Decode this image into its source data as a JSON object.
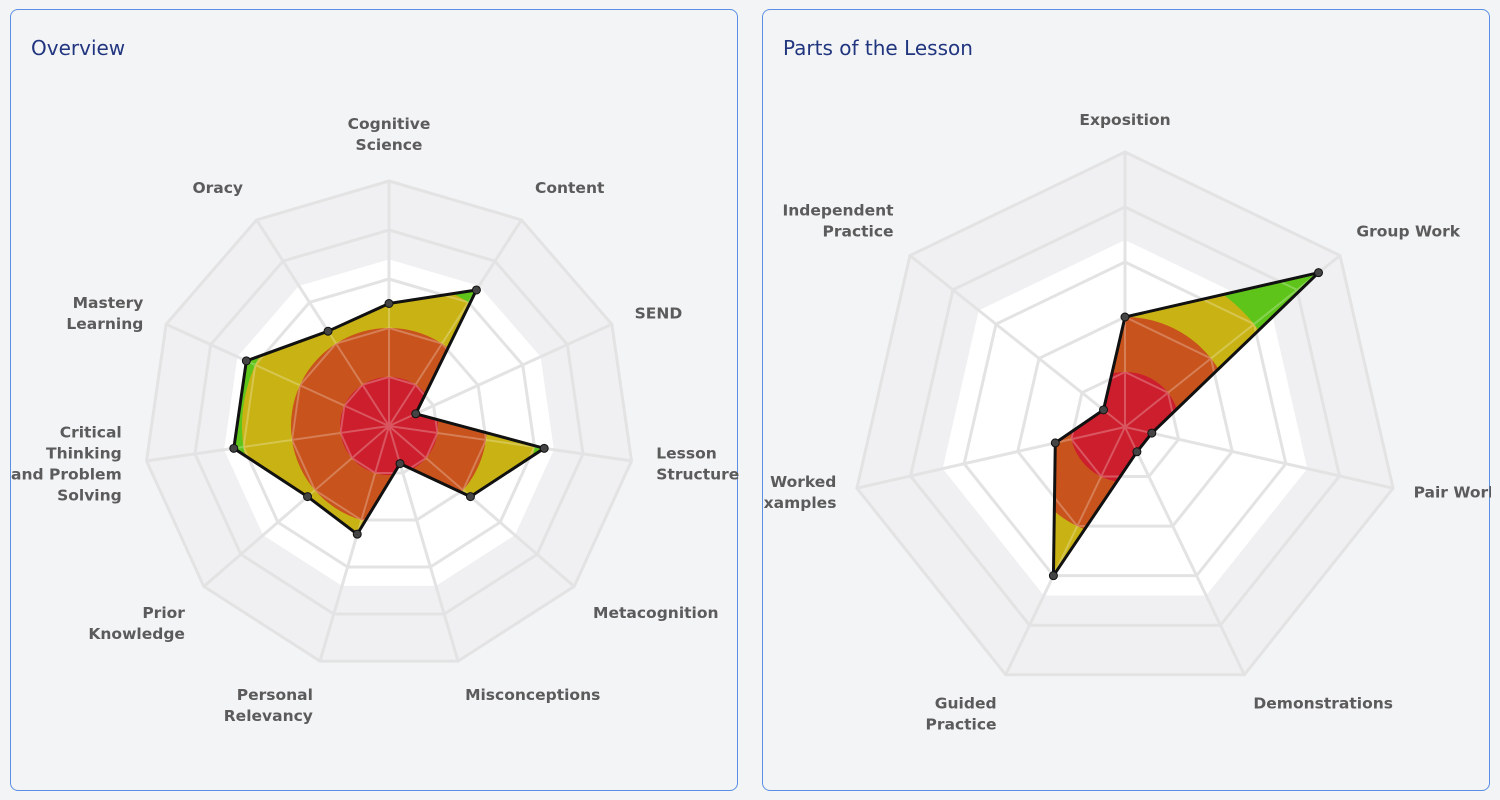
{
  "chart_data": [
    {
      "type": "radar",
      "title": "Overview",
      "axes": [
        "Cognitive Science",
        "Content",
        "SEND",
        "Lesson Structure",
        "Metacognition",
        "Misconceptions",
        "Personal Relevancy",
        "Prior Knowledge",
        "Critical Thinking and Problem Solving",
        "Mastery Learning",
        "Oracy"
      ],
      "axis_label_lines": [
        [
          "Cognitive",
          "Science"
        ],
        [
          "Content"
        ],
        [
          "SEND"
        ],
        [
          "Lesson",
          "Structure"
        ],
        [
          "Metacognition"
        ],
        [
          "Misconceptions"
        ],
        [
          "Personal",
          "Relevancy"
        ],
        [
          "Prior",
          "Knowledge"
        ],
        [
          "Critical",
          "Thinking",
          "and Problem",
          "Solving"
        ],
        [
          "Mastery",
          "Learning"
        ],
        [
          "Oracy"
        ]
      ],
      "values": [
        2.5,
        3.3,
        0.6,
        3.2,
        2.2,
        0.8,
        2.3,
        2.2,
        3.2,
        3.2,
        2.3
      ],
      "scale_max": 5,
      "levels": 5,
      "bands": [
        {
          "from": 0,
          "to": 1,
          "color": "#cc1e2c"
        },
        {
          "from": 1,
          "to": 2,
          "color": "#c8531c"
        },
        {
          "from": 2,
          "to": 3,
          "color": "#c9b314"
        },
        {
          "from": 3,
          "to": 5,
          "color": "#5ec419"
        }
      ]
    },
    {
      "type": "radar",
      "title": "Parts of the Lesson",
      "axes": [
        "Exposition",
        "Group Work",
        "Pair Work",
        "Demonstrations",
        "Guided Practice",
        "Worked Examples",
        "Independent Practice"
      ],
      "axis_label_lines": [
        [
          "Exposition"
        ],
        [
          "Group Work"
        ],
        [
          "Pair Work"
        ],
        [
          "Demonstrations"
        ],
        [
          "Guided",
          "Practice"
        ],
        [
          "Worked",
          "Examples"
        ],
        [
          "Independent",
          "Practice"
        ]
      ],
      "values": [
        2.0,
        4.5,
        0.5,
        0.5,
        3.0,
        1.3,
        0.5
      ],
      "scale_max": 5,
      "levels": 5,
      "bands": [
        {
          "from": 0,
          "to": 1,
          "color": "#cc1e2c"
        },
        {
          "from": 1,
          "to": 2,
          "color": "#c8531c"
        },
        {
          "from": 2,
          "to": 3,
          "color": "#c9b314"
        },
        {
          "from": 3,
          "to": 5,
          "color": "#5ec419"
        }
      ]
    }
  ],
  "colors": {
    "panel_border": "#5b8fe3",
    "title": "#21367f",
    "grid": "#e3e3e3",
    "label": "#5b5b5b",
    "outline": "#111111"
  }
}
